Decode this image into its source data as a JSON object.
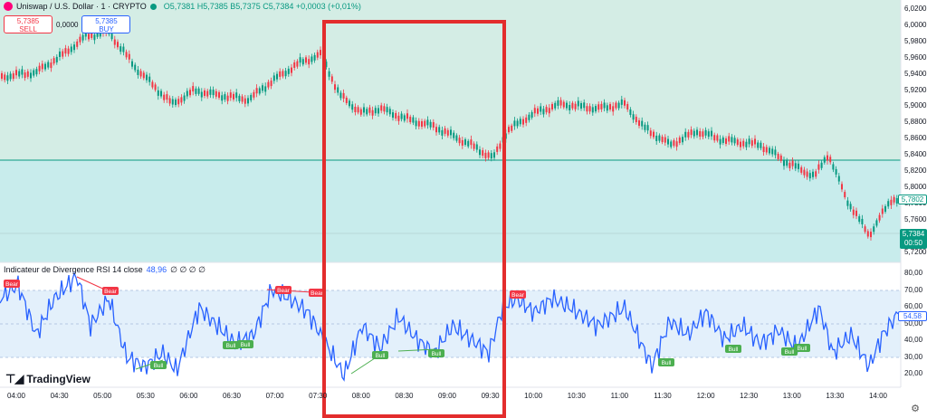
{
  "header": {
    "symbol": "Uniswap / U.S. Dollar · 1 · CRYPTO",
    "ohlc": "O5,7381 H5,7385 B5,7375 C5,7384 +0,0003 (+0,01%)",
    "sell_price": "5,7385",
    "sell_label": "SELL",
    "spread": "0,0000",
    "buy_price": "5,7385",
    "buy_label": "BUY",
    "status_color": "#089981"
  },
  "price_axis": {
    "labels": [
      "6,0200",
      "6,0000",
      "5,9800",
      "5,9600",
      "5,9400",
      "5,9200",
      "5,9000",
      "5,8800",
      "5,8600",
      "5,8400",
      "5,8200",
      "5,8000",
      "5,7800",
      "5,7600",
      "5,7400",
      "5,7200"
    ],
    "last_price_tag": "5,7802",
    "current_price": "5,7384",
    "countdown": "00:50"
  },
  "rsi": {
    "label": "Indicateur de Divergence RSI 14 close",
    "value": "48,96",
    "nums": "∅ ∅ ∅ ∅",
    "axis_labels": [
      "80,00",
      "70,00",
      "60,00",
      "50,00",
      "40,00",
      "30,00",
      "20,00"
    ],
    "value_tag": "54,58",
    "line_color": "#2962ff",
    "bear_color": "#f23645",
    "bull_color": "#4caf50",
    "bear_label": "Bear",
    "bull_label": "Bull"
  },
  "time_axis": [
    "04:00",
    "04:30",
    "05:00",
    "05:30",
    "06:00",
    "06:30",
    "07:00",
    "07:30",
    "08:00",
    "08:30",
    "09:00",
    "09:30",
    "10:00",
    "10:30",
    "11:00",
    "11:30",
    "12:00",
    "12:30",
    "13:00",
    "13:30",
    "14:00"
  ],
  "brand": "TradingView",
  "icons": [
    "uniswap-logo-icon",
    "market-status-icon",
    "tradingview-logo-icon",
    "gear-icon"
  ],
  "highlight_color": "#e32d2d"
}
